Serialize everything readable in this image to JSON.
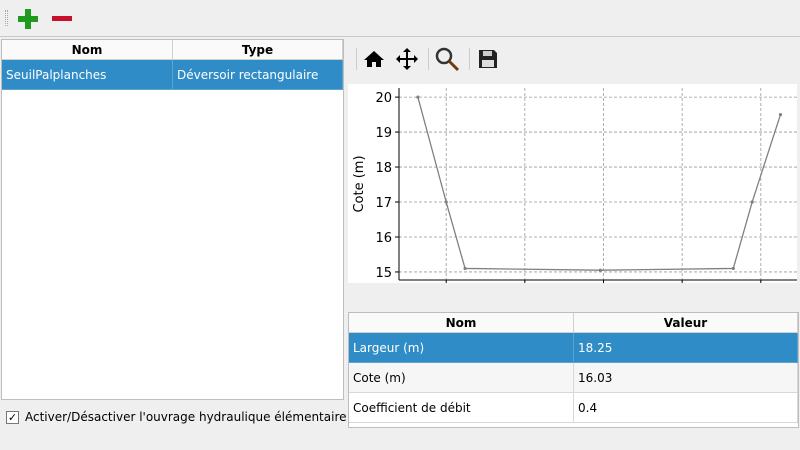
{
  "toolbar": {
    "add_icon": "plus-icon",
    "remove_icon": "minus-icon",
    "colors": {
      "add": "#1e9a1e",
      "remove": "#c8102e"
    }
  },
  "structures_table": {
    "columns": [
      "Nom",
      "Type"
    ],
    "rows": [
      {
        "nom": "SeuilPalplanches",
        "type": "Déversoir rectangulaire",
        "selected": true
      }
    ]
  },
  "toggle": {
    "label": "Activer/Désactiver l'ouvrage hydraulique élémentaire",
    "checked": true
  },
  "plot_toolbar": [
    "home-icon",
    "pan-icon",
    "zoom-icon",
    "save-icon"
  ],
  "chart_data": {
    "type": "line",
    "xlabel": "",
    "ylabel": "Cote (m)",
    "x": [
      -1.8,
      0,
      1.2,
      9.8,
      18.25,
      19.45,
      21.25
    ],
    "y": [
      20,
      17,
      15.1,
      15.05,
      15.1,
      17,
      19.5
    ],
    "xlim": [
      -3,
      22.3
    ],
    "ylim": [
      14.77,
      20.26
    ],
    "xticks": [
      "0",
      "5",
      "10",
      "15",
      "20"
    ],
    "yticks": [
      "15",
      "16",
      "17",
      "18",
      "19",
      "20"
    ],
    "grid": true,
    "color": "#808080"
  },
  "params_table": {
    "columns": [
      "Nom",
      "Valeur"
    ],
    "rows": [
      {
        "nom": "Largeur (m)",
        "valeur": "18.25",
        "selected": true
      },
      {
        "nom": "Cote (m)",
        "valeur": "16.03",
        "selected": false
      },
      {
        "nom": "Coefficient de débit",
        "valeur": "0.4",
        "selected": false
      }
    ]
  },
  "selection_color": "#308cc6"
}
